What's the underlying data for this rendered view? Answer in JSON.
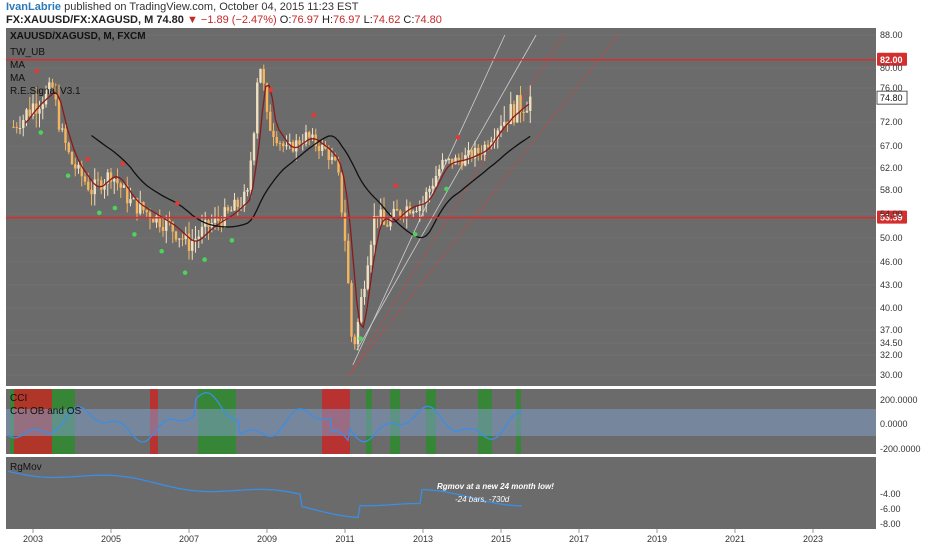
{
  "header": {
    "author": "IvanLabrie",
    "published": " published on TradingView.com, October 04, 2015 11:23 EST",
    "symbol": "FX:XAUUSD/FX:XAGUSD, M",
    "last": "74.80",
    "arrow": "▼",
    "change": "−1.89 (−2.47%)",
    "o_label": "O:",
    "o_val": "76.97",
    "h_label": "H:",
    "h_val": "76.97",
    "l_label": "L:",
    "l_val": "74.62",
    "c_label": "C:",
    "c_val": "74.80"
  },
  "main_pane": {
    "title": "XAUUSD/XAGUSD, M, FXCM",
    "studies": [
      "TW_UB",
      "MA",
      "MA",
      "R.E.Signal V3.1"
    ],
    "price_ticks": [
      "88.00",
      "80.00",
      "76.00",
      "72.00",
      "67.00",
      "62.00",
      "58.00",
      "54.00",
      "50.00",
      "46.00",
      "43.00",
      "40.00",
      "37.00",
      "34.50",
      "32.00",
      "30.00"
    ],
    "level_high": "82.00",
    "level_low": "53.39",
    "last_price": "74.80"
  },
  "cci_pane": {
    "labels": [
      "CCI",
      "CCI OB and OS"
    ],
    "ticks": [
      "200.0000",
      "0.0000",
      "-200.0000"
    ]
  },
  "rgmov_pane": {
    "label": "RgMov",
    "annotation_1": "Rgmov at a new 24 month low!",
    "annotation_2": "-24 bars, -730d",
    "ticks": [
      "-4.00",
      "-6.00",
      "-8.00"
    ]
  },
  "x_axis": {
    "labels": [
      "2003",
      "2005",
      "2007",
      "2009",
      "2011",
      "2013",
      "2015",
      "2017",
      "2019",
      "2021",
      "2023"
    ]
  },
  "colors": {
    "pane_bg": "#6b6b6b",
    "level_line": "#d32f2f",
    "ma_slow": "#111111",
    "ma_fast": "#8b1a1a",
    "cci_line": "#3a8ee6",
    "band": "#7f9cc7",
    "bull_bg": "#2e8b2e",
    "bear_bg": "#c62828"
  },
  "chart_data": {
    "type": "line",
    "series": [
      {
        "name": "XAUUSD/XAGUSD",
        "x": [
          2002.5,
          2003.0,
          2003.5,
          2004.0,
          2004.5,
          2005.0,
          2005.5,
          2006.0,
          2006.5,
          2007.0,
          2007.5,
          2008.0,
          2008.5,
          2008.8,
          2009.0,
          2009.5,
          2010.0,
          2010.5,
          2010.8,
          2011.0,
          2011.2,
          2011.5,
          2011.8,
          2012.0,
          2012.5,
          2013.0,
          2013.5,
          2014.0,
          2014.5,
          2015.0,
          2015.5,
          2015.75
        ],
        "values": [
          71,
          74,
          76,
          63,
          58,
          61,
          56,
          54,
          52,
          49,
          52,
          54,
          57,
          82,
          72,
          66,
          69,
          66,
          62,
          50,
          33,
          44,
          55,
          52,
          55,
          56,
          63,
          64,
          66,
          72,
          74,
          74.8
        ]
      }
    ],
    "ylim": [
      30,
      88
    ]
  }
}
